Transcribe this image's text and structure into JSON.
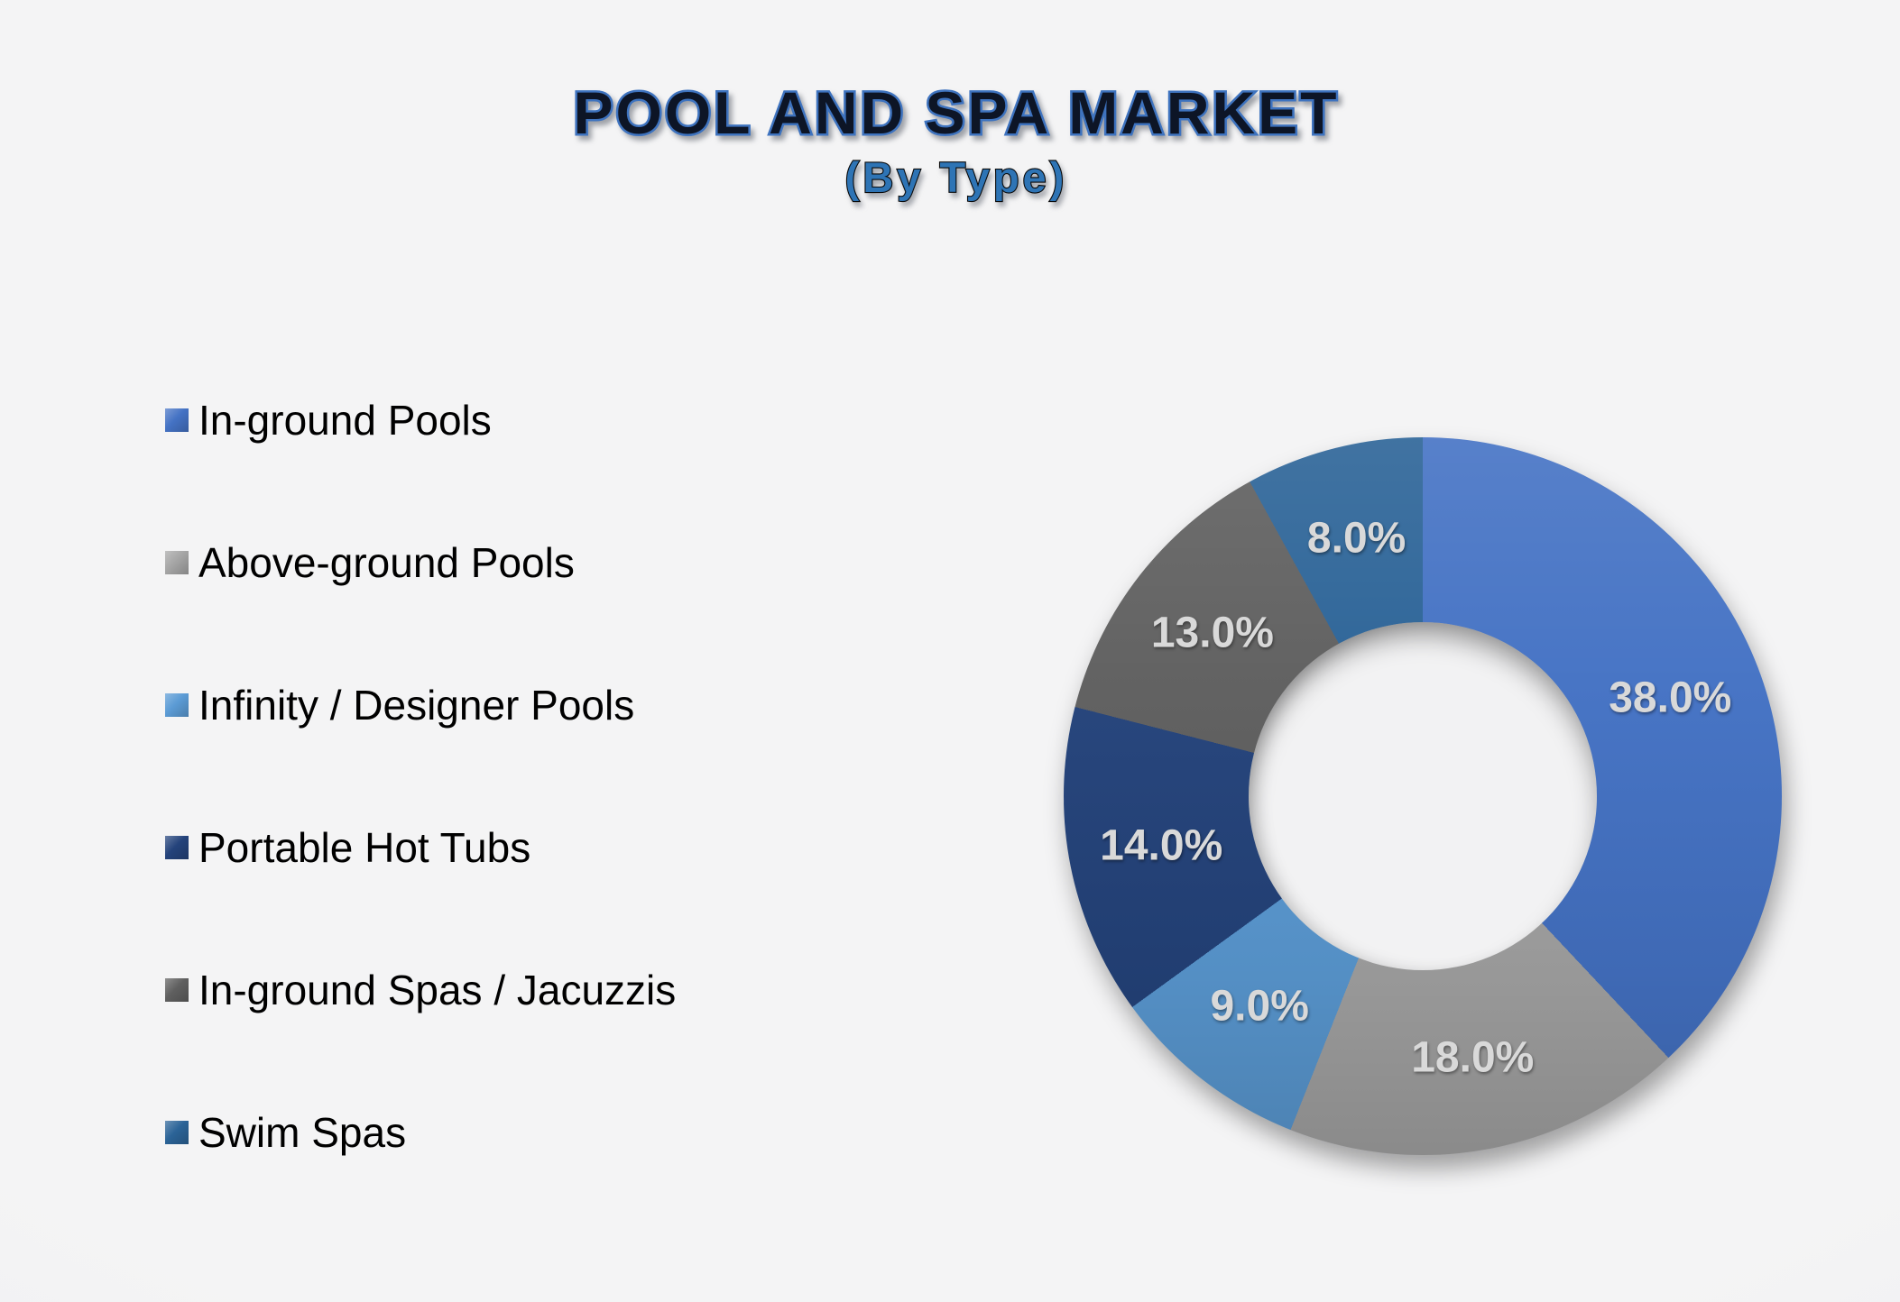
{
  "title": "POOL AND SPA MARKET",
  "subtitle": "(By Type)",
  "colors": {
    "background": "#F1F1F2",
    "title_fill": "#0D1526",
    "title_stroke": "#3E73BF",
    "subtitle_fill": "#2E74B5",
    "subtitle_stroke": "#0A0A0A",
    "slice_label_color": "#D9D9D9",
    "legend_text_color": "#000000"
  },
  "chart_data": {
    "type": "pie",
    "subtype": "donut",
    "title": "POOL AND SPA MARKET",
    "subtitle": "(By Type)",
    "legend_position": "left",
    "direction": "clockwise",
    "start_angle_deg": 0,
    "hole_ratio": 0.485,
    "unit": "%",
    "categories": [
      "In-ground Pools",
      "Above-ground Pools",
      "Infinity / Designer Pools",
      "Portable Hot Tubs",
      "In-ground Spas / Jacuzzis",
      "Swim Spas"
    ],
    "values": [
      38.0,
      18.0,
      9.0,
      14.0,
      13.0,
      8.0
    ],
    "labels": [
      "38.0%",
      "18.0%",
      "9.0%",
      "14.0%",
      "13.0%",
      "8.0%"
    ],
    "slice_colors": [
      "#4472C4",
      "#A5A5A5",
      "#5B9BD5",
      "#24437B",
      "#5F5F5F",
      "#2B6397"
    ]
  }
}
